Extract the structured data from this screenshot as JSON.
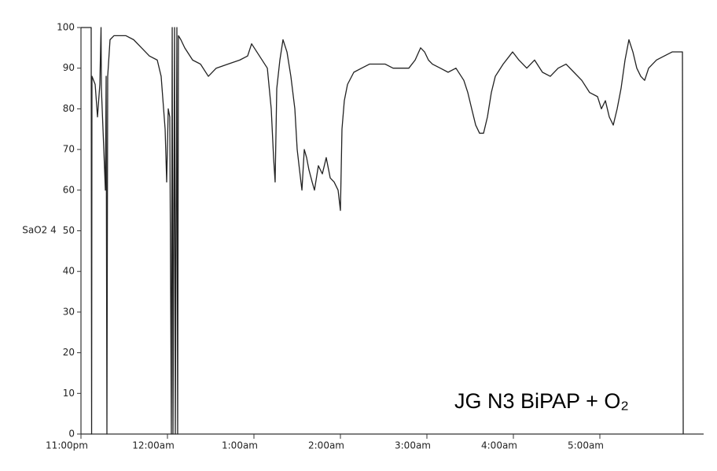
{
  "chart_data": {
    "type": "line",
    "y_label": "SaO2 4",
    "annotation": "JG N3 BiPAP + O₂",
    "color": "#222222",
    "x": [
      0,
      0.118,
      0.123,
      0.127,
      0.164,
      0.191,
      0.218,
      0.232,
      0.236,
      0.264,
      0.282,
      0.291,
      0.3,
      0.309,
      0.336,
      0.382,
      0.518,
      0.609,
      0.7,
      0.791,
      0.882,
      0.927,
      0.973,
      0.991,
      1.009,
      1.027,
      1.045,
      1.055,
      1.064,
      1.082,
      1.091,
      1.109,
      1.118,
      1.127,
      1.155,
      1.2,
      1.291,
      1.382,
      1.473,
      1.564,
      1.7,
      1.836,
      1.927,
      1.973,
      2.064,
      2.155,
      2.2,
      2.227,
      2.245,
      2.264,
      2.3,
      2.336,
      2.382,
      2.427,
      2.473,
      2.5,
      2.527,
      2.555,
      2.582,
      2.609,
      2.636,
      2.673,
      2.7,
      2.745,
      2.791,
      2.836,
      2.882,
      2.927,
      2.973,
      3,
      3.018,
      3.045,
      3.082,
      3.155,
      3.245,
      3.336,
      3.427,
      3.518,
      3.609,
      3.7,
      3.791,
      3.864,
      3.927,
      3.973,
      4.018,
      4.064,
      4.155,
      4.245,
      4.336,
      4.427,
      4.473,
      4.518,
      4.564,
      4.609,
      4.655,
      4.7,
      4.745,
      4.791,
      4.882,
      4.955,
      4.991,
      5.064,
      5.155,
      5.245,
      5.336,
      5.427,
      5.518,
      5.609,
      5.7,
      5.791,
      5.882,
      5.973,
      6.018,
      6.064,
      6.109,
      6.155,
      6.2,
      6.245,
      6.291,
      6.336,
      6.382,
      6.427,
      6.473,
      6.518,
      6.564,
      6.655,
      6.745,
      6.836,
      6.955,
      6.964
    ],
    "values": [
      100,
      100,
      0,
      88,
      86,
      78,
      86,
      100,
      85,
      70,
      60,
      88,
      0,
      88,
      97,
      98,
      98,
      97,
      95,
      93,
      92,
      88,
      75,
      62,
      80,
      78,
      0,
      100,
      0,
      100,
      0,
      100,
      0,
      98,
      97,
      95,
      92,
      91,
      88,
      90,
      91,
      92,
      93,
      96,
      93,
      90,
      80,
      68,
      62,
      85,
      92,
      97,
      94,
      88,
      80,
      70,
      65,
      60,
      70,
      68,
      65,
      62,
      60,
      66,
      64,
      68,
      63,
      62,
      60,
      55,
      75,
      82,
      86,
      89,
      90,
      91,
      91,
      91,
      90,
      90,
      90,
      92,
      95,
      94,
      92,
      91,
      90,
      89,
      90,
      87,
      84,
      80,
      76,
      74,
      74,
      78,
      84,
      88,
      91,
      93,
      94,
      92,
      90,
      92,
      89,
      88,
      90,
      91,
      89,
      87,
      84,
      83,
      80,
      82,
      78,
      76,
      80,
      85,
      92,
      97,
      94,
      90,
      88,
      87,
      90,
      92,
      93,
      94,
      94,
      0
    ],
    "xlim": [
      0,
      7.2
    ],
    "xticks": [
      {
        "value": 0,
        "label": "11:00pm"
      },
      {
        "value": 1,
        "label": "12:00am"
      },
      {
        "value": 2,
        "label": "1:00am"
      },
      {
        "value": 3,
        "label": "2:00am"
      },
      {
        "value": 4,
        "label": "3:00am"
      },
      {
        "value": 5,
        "label": "4:00am"
      },
      {
        "value": 6,
        "label": "5:00am"
      }
    ],
    "ylim": [
      0,
      100
    ],
    "yticks": [
      0,
      10,
      20,
      30,
      40,
      50,
      60,
      70,
      80,
      90,
      100
    ]
  }
}
